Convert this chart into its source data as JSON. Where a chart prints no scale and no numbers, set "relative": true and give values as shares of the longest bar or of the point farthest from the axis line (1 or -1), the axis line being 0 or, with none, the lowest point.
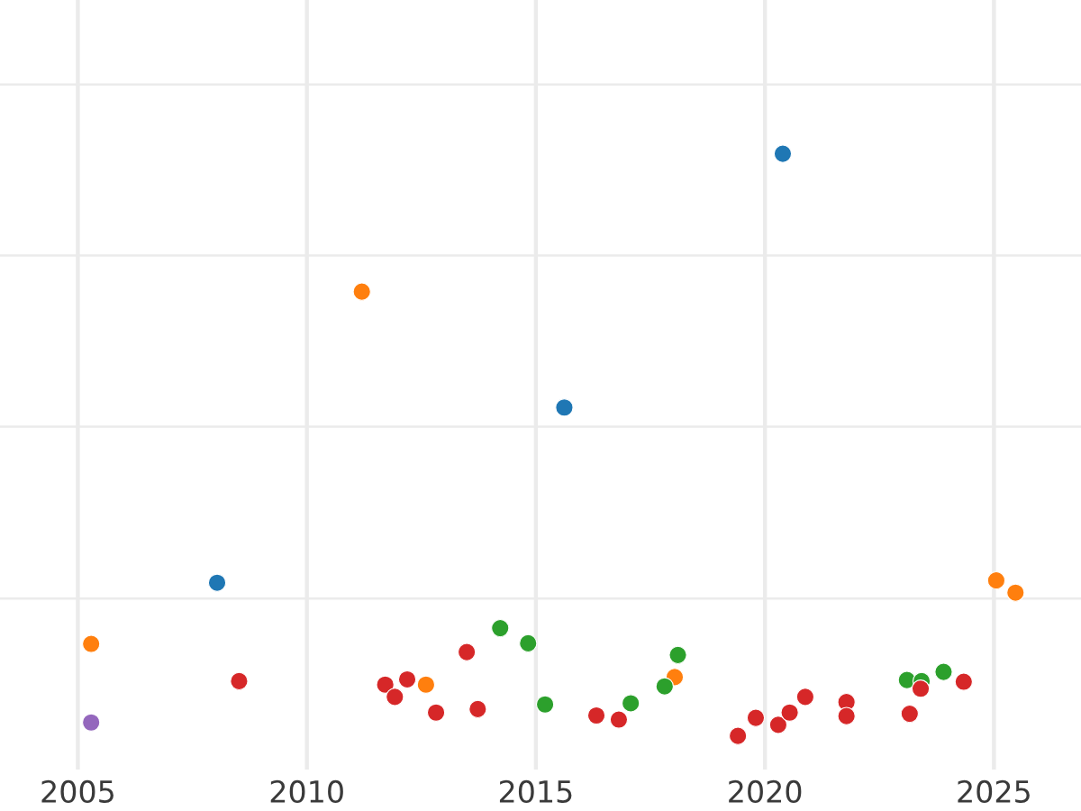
{
  "chart_data": {
    "type": "scatter",
    "relative": true,
    "marker": "circle",
    "grid": "x",
    "xlim": [
      2003.3,
      2026.9
    ],
    "xticks": [
      2005,
      2010,
      2015,
      2020,
      2025
    ],
    "ref_lines": [
      {
        "axis": "y",
        "value": 0.236,
        "color": "#ebebeb"
      },
      {
        "axis": "y",
        "value": 0.531,
        "color": "#ebebeb"
      },
      {
        "axis": "y",
        "value": 0.825,
        "color": "#ebebeb"
      },
      {
        "axis": "y",
        "value": 1.119,
        "color": "#ebebeb"
      }
    ],
    "series": [
      {
        "color": "#1f77b4",
        "x": [
          2008.04,
          2015.62,
          2020.39
        ],
        "values": [
          0.263,
          0.564,
          1.0
        ]
      },
      {
        "color": "#ff7f0e",
        "x": [
          2005.29,
          2011.2,
          2012.6,
          2018.03,
          2025.05,
          2025.47
        ],
        "values": [
          0.158,
          0.763,
          0.088,
          0.101,
          0.267,
          0.246
        ]
      },
      {
        "color": "#2ca02c",
        "x": [
          2014.22,
          2014.83,
          2015.2,
          2017.07,
          2017.81,
          2018.1,
          2023.1,
          2023.42,
          2023.9
        ],
        "values": [
          0.185,
          0.159,
          0.054,
          0.056,
          0.085,
          0.139,
          0.096,
          0.094,
          0.11
        ]
      },
      {
        "color": "#d62728",
        "x": [
          2008.52,
          2011.71,
          2011.92,
          2012.19,
          2012.82,
          2013.49,
          2013.73,
          2016.32,
          2016.81,
          2019.41,
          2019.8,
          2020.29,
          2020.54,
          2020.88,
          2021.78,
          2021.78,
          2023.16,
          2023.4,
          2024.34
        ],
        "values": [
          0.094,
          0.088,
          0.067,
          0.097,
          0.04,
          0.144,
          0.046,
          0.035,
          0.028,
          0.0,
          0.031,
          0.019,
          0.04,
          0.067,
          0.058,
          0.034,
          0.038,
          0.081,
          0.093
        ]
      },
      {
        "color": "#9467bd",
        "x": [
          2005.29
        ],
        "values": [
          0.023
        ]
      }
    ]
  }
}
